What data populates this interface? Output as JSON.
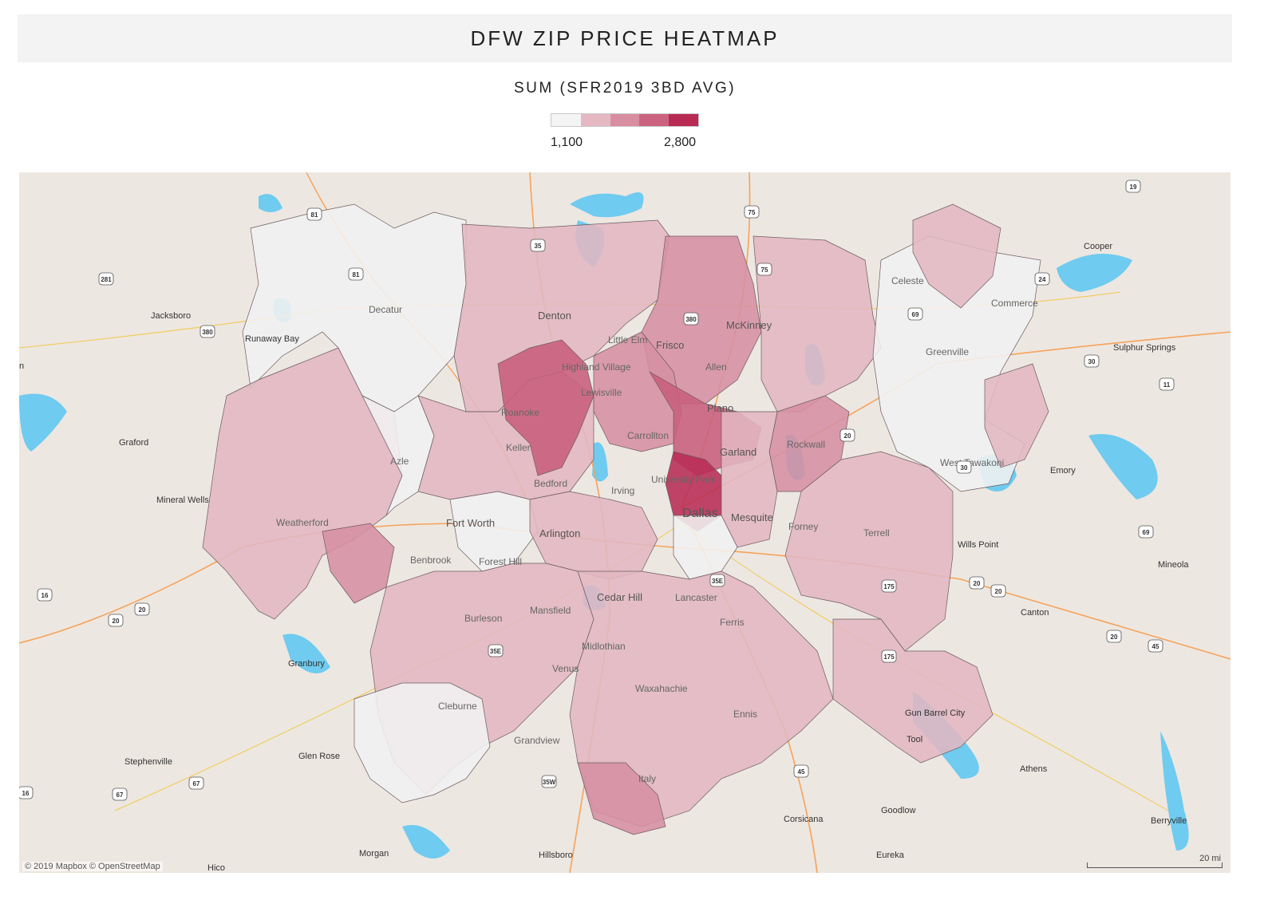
{
  "title": "DFW ZIP PRICE HEATMAP",
  "legend": {
    "title": "SUM (SFR2019 3BD AVG)",
    "min_label": "1,100",
    "max_label": "2,800",
    "colors": [
      "#f4f4f4",
      "#e6b8c3",
      "#d98da0",
      "#cc637e",
      "#b92a52"
    ]
  },
  "map": {
    "attribution": "© 2019 Mapbox © OpenStreetMap",
    "scale_label": "20 mi",
    "colors": {
      "land": "#ede7e1",
      "water": "#6fcbef",
      "highway": "#f6a35a",
      "road": "#f2c94a",
      "zone_light": "#f1f1f1",
      "zone_low": "#e3b7c2",
      "zone_mid": "#d68fa3",
      "zone_high": "#c85f7c",
      "zone_top": "#b82c55"
    },
    "cities_outside": [
      "Jacksboro",
      "Runaway Bay",
      "Graford",
      "Mineral Wells",
      "Granbury",
      "Glen Rose",
      "Stephenville",
      "Morgan",
      "Hico",
      "Hillsboro",
      "Corsicana",
      "Goodlow",
      "Eureka",
      "Athens",
      "Berryville",
      "Gun Barrel City",
      "Tool",
      "Canton",
      "Mineola",
      "Wills Point",
      "Emory",
      "Sulphur Springs",
      "Cooper",
      "n"
    ],
    "cities_inside": [
      "Decatur",
      "Denton",
      "Little Elm",
      "Frisco",
      "McKinney",
      "Celeste",
      "Commerce",
      "Greenville",
      "Highland Village",
      "Lewisville",
      "Allen",
      "Roanoke",
      "Plano",
      "Carrollton",
      "Keller",
      "Azle",
      "Garland",
      "Rockwall",
      "West Tawakoni",
      "Bedford",
      "Irving",
      "University Park",
      "Dallas",
      "Fort Worth",
      "Arlington",
      "Mesquite",
      "Forney",
      "Terrell",
      "Weatherford",
      "Benbrook",
      "Forest Hill",
      "Cedar Hill",
      "Lancaster",
      "Burleson",
      "Mansfield",
      "Ferris",
      "Midlothian",
      "Venus",
      "Waxahachie",
      "Cleburne",
      "Ennis",
      "Grandview",
      "Italy"
    ],
    "highway_shields": [
      "81",
      "281",
      "380",
      "81",
      "35",
      "75",
      "75",
      "380",
      "19",
      "24",
      "69",
      "30",
      "11",
      "20",
      "30",
      "20",
      "175",
      "20",
      "20",
      "69",
      "16",
      "20",
      "20",
      "16",
      "67",
      "67",
      "35W",
      "45",
      "175",
      "35E",
      "35E",
      "45"
    ]
  }
}
